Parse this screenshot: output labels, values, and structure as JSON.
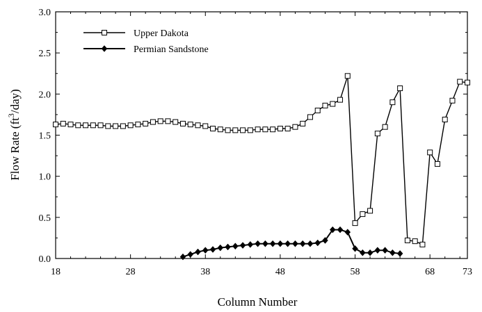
{
  "chart_data": {
    "type": "line",
    "xlabel": "Column Number",
    "ylabel": {
      "prefix": "Flow Rate (ft",
      "sup": "3",
      "suffix": "/day)"
    },
    "xlim": [
      18,
      73
    ],
    "ylim": [
      0,
      3.0
    ],
    "xticks": [
      18,
      28,
      38,
      48,
      58,
      68,
      73
    ],
    "yticks": [
      "0.0",
      "0.5",
      "1.0",
      "1.5",
      "2.0",
      "2.5",
      "3.0"
    ],
    "legend": "top-left",
    "grid": false,
    "series": [
      {
        "name": "Upper Dakota",
        "marker": "open-square",
        "color": "#000000",
        "x": [
          18,
          19,
          20,
          21,
          22,
          23,
          24,
          25,
          26,
          27,
          28,
          29,
          30,
          31,
          32,
          33,
          34,
          35,
          36,
          37,
          38,
          39,
          40,
          41,
          42,
          43,
          44,
          45,
          46,
          47,
          48,
          49,
          50,
          51,
          52,
          53,
          54,
          55,
          56,
          57,
          58,
          59,
          60,
          61,
          62,
          63,
          64,
          65,
          66,
          67,
          68,
          69,
          70,
          71,
          72,
          73
        ],
        "values": [
          1.63,
          1.64,
          1.63,
          1.62,
          1.62,
          1.62,
          1.62,
          1.61,
          1.61,
          1.61,
          1.62,
          1.63,
          1.64,
          1.66,
          1.67,
          1.67,
          1.66,
          1.64,
          1.63,
          1.62,
          1.61,
          1.58,
          1.57,
          1.56,
          1.56,
          1.56,
          1.56,
          1.57,
          1.57,
          1.57,
          1.58,
          1.58,
          1.6,
          1.64,
          1.72,
          1.8,
          1.86,
          1.88,
          1.93,
          2.22,
          0.43,
          0.54,
          0.58,
          1.52,
          1.6,
          1.9,
          2.07,
          0.22,
          0.21,
          0.17,
          1.29,
          1.15,
          1.69,
          1.92,
          2.15,
          2.14
        ]
      },
      {
        "name": "Permian Sandstone",
        "marker": "filled-diamond",
        "color": "#000000",
        "x": [
          35,
          36,
          37,
          38,
          39,
          40,
          41,
          42,
          43,
          44,
          45,
          46,
          47,
          48,
          49,
          50,
          51,
          52,
          53,
          54,
          55,
          56,
          57,
          58,
          59,
          60,
          61,
          62,
          63,
          64
        ],
        "values": [
          0.02,
          0.05,
          0.08,
          0.1,
          0.11,
          0.13,
          0.14,
          0.15,
          0.16,
          0.17,
          0.18,
          0.18,
          0.18,
          0.18,
          0.18,
          0.18,
          0.18,
          0.18,
          0.19,
          0.22,
          0.35,
          0.35,
          0.32,
          0.12,
          0.07,
          0.07,
          0.1,
          0.1,
          0.07,
          0.06
        ]
      }
    ]
  }
}
